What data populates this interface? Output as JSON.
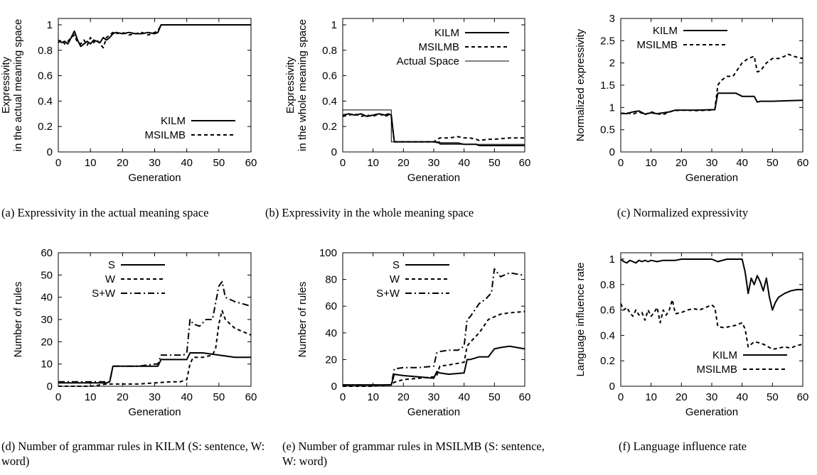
{
  "chart_data": [
    {
      "type": "line",
      "caption": "(a) Expressivity in the actual meaning space",
      "xlabel": "Generation",
      "ylabel": [
        "Expressivity",
        "in the actual meaning space"
      ],
      "xlim": [
        0,
        60
      ],
      "ylim": [
        0,
        1.05
      ],
      "xticks": [
        0,
        10,
        20,
        30,
        40,
        50,
        60
      ],
      "yticks": [
        0,
        0.2,
        0.4,
        0.6,
        0.8,
        1
      ],
      "legend": "bottom-right",
      "series": [
        {
          "name": "KILM",
          "style": "solid",
          "x": [
            0,
            1,
            2,
            3,
            4,
            5,
            6,
            7,
            8,
            9,
            10,
            11,
            12,
            13,
            14,
            15,
            16,
            17,
            18,
            20,
            22,
            24,
            26,
            28,
            30,
            31,
            32,
            36,
            40,
            44,
            48,
            52,
            56,
            60
          ],
          "y": [
            0.88,
            0.86,
            0.87,
            0.85,
            0.9,
            0.95,
            0.88,
            0.83,
            0.85,
            0.87,
            0.85,
            0.88,
            0.87,
            0.86,
            0.9,
            0.88,
            0.9,
            0.93,
            0.94,
            0.93,
            0.94,
            0.93,
            0.93,
            0.94,
            0.93,
            0.94,
            1.0,
            1.0,
            1.0,
            1.0,
            1.0,
            1.0,
            1.0,
            1.0
          ]
        },
        {
          "name": "MSILMB",
          "style": "dashed",
          "x": [
            0,
            1,
            2,
            3,
            4,
            5,
            6,
            7,
            8,
            9,
            10,
            11,
            12,
            13,
            14,
            15,
            16,
            17,
            18,
            20,
            22,
            24,
            26,
            28,
            30,
            31,
            32,
            36,
            40,
            44,
            48,
            52,
            56,
            60
          ],
          "y": [
            0.86,
            0.88,
            0.85,
            0.87,
            0.9,
            0.92,
            0.86,
            0.85,
            0.88,
            0.84,
            0.9,
            0.86,
            0.88,
            0.85,
            0.82,
            0.9,
            0.92,
            0.94,
            0.93,
            0.94,
            0.92,
            0.93,
            0.94,
            0.92,
            0.94,
            0.95,
            1.0,
            1.0,
            1.0,
            1.0,
            1.0,
            1.0,
            1.0,
            1.0
          ]
        }
      ]
    },
    {
      "type": "line",
      "caption": "(b) Expressivity in the whole meaning space",
      "xlabel": "Generation",
      "ylabel": [
        "Expressivity",
        "in the whole meaning space"
      ],
      "xlim": [
        0,
        60
      ],
      "ylim": [
        0,
        1.05
      ],
      "xticks": [
        0,
        10,
        20,
        30,
        40,
        50,
        60
      ],
      "yticks": [
        0,
        0.2,
        0.4,
        0.6,
        0.8,
        1
      ],
      "legend": "top-right",
      "series": [
        {
          "name": "KILM",
          "style": "solid",
          "x": [
            0,
            2,
            4,
            6,
            8,
            10,
            12,
            14,
            15,
            16,
            17,
            20,
            25,
            30,
            32,
            35,
            38,
            40,
            42,
            44,
            45,
            48,
            50,
            55,
            60
          ],
          "y": [
            0.29,
            0.3,
            0.29,
            0.3,
            0.28,
            0.29,
            0.3,
            0.29,
            0.3,
            0.29,
            0.08,
            0.08,
            0.08,
            0.08,
            0.07,
            0.07,
            0.07,
            0.06,
            0.06,
            0.06,
            0.05,
            0.05,
            0.05,
            0.05,
            0.05
          ]
        },
        {
          "name": "MSILMB",
          "style": "dashed",
          "x": [
            0,
            2,
            4,
            6,
            8,
            10,
            12,
            14,
            15,
            16,
            17,
            20,
            25,
            30,
            32,
            35,
            38,
            40,
            42,
            44,
            45,
            48,
            50,
            55,
            60
          ],
          "y": [
            0.28,
            0.29,
            0.3,
            0.28,
            0.29,
            0.28,
            0.3,
            0.28,
            0.29,
            0.28,
            0.08,
            0.08,
            0.08,
            0.08,
            0.11,
            0.11,
            0.12,
            0.11,
            0.11,
            0.1,
            0.09,
            0.1,
            0.1,
            0.11,
            0.11
          ]
        },
        {
          "name": "Actual Space",
          "style": "thin",
          "x": [
            0,
            16,
            16.01,
            32,
            32.01,
            60
          ],
          "y": [
            0.33,
            0.33,
            0.08,
            0.08,
            0.06,
            0.06
          ]
        }
      ]
    },
    {
      "type": "line",
      "caption": "(c) Normalized expressivity",
      "xlabel": "Generation",
      "ylabel": [
        "Normalized expressivity"
      ],
      "xlim": [
        0,
        60
      ],
      "ylim": [
        0,
        3
      ],
      "xticks": [
        0,
        10,
        20,
        30,
        40,
        50,
        60
      ],
      "yticks": [
        0,
        0.5,
        1,
        1.5,
        2,
        2.5,
        3
      ],
      "legend": "top-left",
      "series": [
        {
          "name": "KILM",
          "style": "solid",
          "x": [
            0,
            2,
            4,
            6,
            8,
            10,
            12,
            14,
            16,
            18,
            20,
            25,
            30,
            31,
            32,
            35,
            38,
            40,
            41,
            44,
            45,
            46,
            50,
            55,
            60
          ],
          "y": [
            0.87,
            0.86,
            0.9,
            0.92,
            0.85,
            0.88,
            0.86,
            0.88,
            0.9,
            0.94,
            0.94,
            0.94,
            0.95,
            0.95,
            1.32,
            1.32,
            1.32,
            1.25,
            1.25,
            1.25,
            1.12,
            1.14,
            1.14,
            1.15,
            1.16
          ]
        },
        {
          "name": "MSILMB",
          "style": "dashed",
          "x": [
            0,
            2,
            4,
            6,
            8,
            10,
            12,
            14,
            16,
            18,
            20,
            25,
            30,
            31,
            32,
            33,
            35,
            37,
            38,
            40,
            42,
            44,
            45,
            46,
            48,
            50,
            52,
            54,
            55,
            57,
            60
          ],
          "y": [
            0.86,
            0.88,
            0.85,
            0.9,
            0.84,
            0.9,
            0.86,
            0.84,
            0.9,
            0.93,
            0.94,
            0.93,
            0.94,
            0.95,
            1.5,
            1.6,
            1.7,
            1.7,
            1.8,
            2.0,
            2.1,
            2.15,
            1.8,
            1.82,
            2.0,
            2.1,
            2.1,
            2.15,
            2.2,
            2.15,
            2.1
          ]
        }
      ]
    },
    {
      "type": "line",
      "caption": "(d) Number of grammar rules in KILM (S: sentence, W: word)",
      "xlabel": "Generation",
      "ylabel": [
        "Number of rules"
      ],
      "xlim": [
        0,
        60
      ],
      "ylim": [
        0,
        60
      ],
      "xticks": [
        0,
        10,
        20,
        30,
        40,
        50,
        60
      ],
      "yticks": [
        0,
        10,
        20,
        30,
        40,
        50,
        60
      ],
      "legend": "top-left",
      "series": [
        {
          "name": "S",
          "style": "solid",
          "x": [
            0,
            5,
            10,
            15,
            16,
            17,
            20,
            25,
            30,
            31,
            32,
            35,
            40,
            41,
            45,
            50,
            55,
            60
          ],
          "y": [
            1.5,
            1.5,
            1.5,
            1.5,
            2,
            9,
            9,
            9,
            9,
            9,
            12,
            12,
            12,
            15,
            15,
            14,
            13,
            13
          ]
        },
        {
          "name": "W",
          "style": "dashed",
          "x": [
            0,
            10,
            15,
            20,
            25,
            30,
            35,
            38,
            40,
            41,
            42,
            45,
            48,
            49,
            50,
            51,
            52,
            55,
            60
          ],
          "y": [
            0,
            0,
            1,
            1,
            1,
            1.5,
            2,
            2,
            3,
            10,
            13,
            13,
            14,
            17,
            28,
            34,
            30,
            26,
            23
          ]
        },
        {
          "name": "S+W",
          "style": "dashdot",
          "x": [
            0,
            5,
            10,
            15,
            16,
            17,
            20,
            25,
            30,
            31,
            32,
            35,
            39,
            40,
            41,
            42,
            44,
            46,
            48,
            50,
            51,
            52,
            55,
            60
          ],
          "y": [
            2,
            2,
            2,
            2,
            2,
            9,
            9,
            9,
            10,
            10,
            14,
            14,
            14,
            15,
            30,
            28,
            27,
            30,
            30,
            45,
            47,
            40,
            38,
            36
          ]
        }
      ]
    },
    {
      "type": "line",
      "caption": "(e) Number of grammar rules in MSILMB (S: sentence, W: word)",
      "xlabel": "Generation",
      "ylabel": [
        "Number of rules"
      ],
      "xlim": [
        0,
        60
      ],
      "ylim": [
        0,
        100
      ],
      "xticks": [
        0,
        10,
        20,
        30,
        40,
        50,
        60
      ],
      "yticks": [
        0,
        20,
        40,
        60,
        80,
        100
      ],
      "legend": "top-left",
      "series": [
        {
          "name": "S",
          "style": "solid",
          "x": [
            0,
            5,
            10,
            15,
            16,
            17,
            20,
            25,
            30,
            31,
            32,
            35,
            40,
            41,
            42,
            45,
            48,
            50,
            52,
            55,
            60
          ],
          "y": [
            1,
            1,
            1,
            1,
            1,
            9,
            8,
            7,
            6,
            11,
            10,
            9,
            10,
            20,
            20,
            22,
            22,
            28,
            29,
            30,
            28
          ]
        },
        {
          "name": "W",
          "style": "dashed",
          "x": [
            0,
            5,
            10,
            15,
            16,
            17,
            20,
            25,
            30,
            31,
            32,
            35,
            40,
            41,
            42,
            45,
            48,
            50,
            52,
            55,
            60
          ],
          "y": [
            0,
            0,
            0,
            1,
            1,
            3,
            5,
            6,
            7,
            8,
            15,
            16,
            18,
            30,
            33,
            40,
            50,
            52,
            54,
            55,
            56
          ]
        },
        {
          "name": "S+W",
          "style": "dashdot",
          "x": [
            0,
            5,
            10,
            15,
            16,
            17,
            20,
            25,
            30,
            31,
            32,
            35,
            38,
            40,
            41,
            42,
            45,
            47,
            49,
            50,
            52,
            55,
            60
          ],
          "y": [
            1,
            1,
            1,
            1,
            1,
            13,
            14,
            14,
            15,
            25,
            26,
            27,
            27,
            30,
            50,
            52,
            62,
            65,
            70,
            88,
            82,
            85,
            83
          ]
        }
      ]
    },
    {
      "type": "line",
      "caption": "(f) Language influence rate",
      "xlabel": "Generation",
      "ylabel": [
        "Language influence rate"
      ],
      "xlim": [
        0,
        60
      ],
      "ylim": [
        0,
        1.05
      ],
      "xticks": [
        0,
        10,
        20,
        30,
        40,
        50,
        60
      ],
      "yticks": [
        0,
        0.2,
        0.4,
        0.6,
        0.8,
        1
      ],
      "legend": "bottom-right",
      "series": [
        {
          "name": "KILM",
          "style": "solid",
          "x": [
            0,
            1,
            2,
            3,
            4,
            5,
            6,
            7,
            8,
            9,
            10,
            12,
            14,
            16,
            18,
            20,
            22,
            25,
            28,
            30,
            32,
            35,
            38,
            40,
            41,
            42,
            43,
            44,
            45,
            46,
            47,
            48,
            49,
            50,
            51,
            52,
            54,
            56,
            58,
            60
          ],
          "y": [
            1.0,
            0.98,
            0.97,
            0.99,
            0.98,
            0.97,
            0.99,
            0.98,
            0.99,
            0.98,
            0.99,
            0.98,
            0.99,
            0.99,
            0.99,
            1.0,
            1.0,
            1.0,
            1.0,
            1.0,
            0.98,
            1.0,
            1.0,
            1.0,
            0.9,
            0.73,
            0.85,
            0.8,
            0.87,
            0.82,
            0.75,
            0.85,
            0.7,
            0.6,
            0.66,
            0.7,
            0.73,
            0.75,
            0.76,
            0.76
          ]
        },
        {
          "name": "MSILMB",
          "style": "dashed",
          "x": [
            0,
            1,
            2,
            3,
            4,
            5,
            6,
            7,
            8,
            9,
            10,
            11,
            12,
            13,
            14,
            15,
            16,
            17,
            18,
            20,
            22,
            24,
            26,
            28,
            30,
            31,
            32,
            34,
            36,
            38,
            40,
            41,
            42,
            44,
            46,
            48,
            50,
            52,
            54,
            56,
            58,
            60
          ],
          "y": [
            0.65,
            0.6,
            0.62,
            0.58,
            0.55,
            0.6,
            0.56,
            0.58,
            0.52,
            0.6,
            0.55,
            0.58,
            0.62,
            0.5,
            0.6,
            0.56,
            0.6,
            0.68,
            0.57,
            0.58,
            0.6,
            0.61,
            0.6,
            0.62,
            0.64,
            0.62,
            0.47,
            0.46,
            0.47,
            0.48,
            0.5,
            0.45,
            0.31,
            0.35,
            0.34,
            0.32,
            0.29,
            0.3,
            0.31,
            0.3,
            0.32,
            0.33
          ]
        }
      ]
    }
  ]
}
